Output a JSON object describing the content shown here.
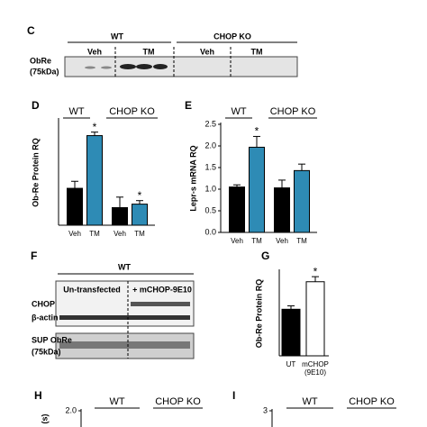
{
  "chart_data": [
    {
      "type": "bar",
      "panel": "D",
      "ylabel": "Ob-Re Protein RQ",
      "group_labels": [
        "WT",
        "CHOP KO"
      ],
      "categories": [
        "Veh",
        "TM",
        "Veh",
        "TM"
      ],
      "values": [
        1.05,
        2.55,
        0.5,
        0.6
      ],
      "errors": [
        0.2,
        0.1,
        0.3,
        0.1
      ],
      "colors": [
        "#000000",
        "#2e8bb5",
        "#000000",
        "#2e8bb5"
      ],
      "markers": [
        null,
        "*",
        null,
        "*"
      ],
      "ylim": [
        0,
        3
      ]
    },
    {
      "type": "bar",
      "panel": "E",
      "ylabel": "Lepr-s mRNA RQ",
      "group_labels": [
        "WT",
        "CHOP KO"
      ],
      "categories": [
        "Veh",
        "TM",
        "Veh",
        "TM"
      ],
      "values": [
        1.05,
        1.97,
        1.03,
        1.43
      ],
      "errors": [
        0.05,
        0.25,
        0.18,
        0.15
      ],
      "colors": [
        "#000000",
        "#2e8bb5",
        "#000000",
        "#2e8bb5"
      ],
      "markers": [
        null,
        "*",
        null,
        null
      ],
      "ylim": [
        0,
        2.5
      ],
      "yticks": [
        {
          "value": 0,
          "label": "0.0"
        },
        {
          "value": 0.5,
          "label": "0.5"
        },
        {
          "value": 1,
          "label": "1.0"
        },
        {
          "value": 1.5,
          "label": "1.5"
        },
        {
          "value": 2,
          "label": "2.0"
        },
        {
          "value": 2.5,
          "label": "2.5"
        }
      ]
    },
    {
      "type": "bar",
      "panel": "G",
      "ylabel": "Ob-Re Protein RQ",
      "categories": [
        "UT",
        "mCHOP"
      ],
      "category_sublabels": [
        null,
        "(9E10)"
      ],
      "values": [
        1.1,
        1.75
      ],
      "errors": [
        0.08,
        0.12
      ],
      "colors": [
        "#000000",
        "#ffffff"
      ],
      "markers": [
        null,
        "*"
      ],
      "ylim": [
        0,
        2
      ]
    },
    {
      "type": "line",
      "panel": "H",
      "ylabel": "(s)",
      "group_labels": [
        "WT",
        "CHOP KO"
      ],
      "yticks": [
        {
          "value": 2,
          "label": "2.0"
        }
      ]
    },
    {
      "type": "line",
      "panel": "I",
      "group_labels": [
        "WT",
        "CHOP KO"
      ],
      "yticks": [
        3
      ]
    }
  ],
  "blots": {
    "C": {
      "panel": "C",
      "groups": [
        "WT",
        "CHOP KO"
      ],
      "lanes": [
        "Veh",
        "TM",
        "Veh",
        "TM"
      ],
      "rows": [
        "ObRe",
        "(75kDa)"
      ]
    },
    "F": {
      "panel": "F",
      "group": "WT",
      "lanes": [
        "Un-transfected",
        "+ mCHOP-9E10"
      ],
      "rows": [
        "CHOP",
        "β-actin"
      ],
      "sup_rows": [
        "SUP ObRe",
        "(75kDa)"
      ]
    }
  }
}
